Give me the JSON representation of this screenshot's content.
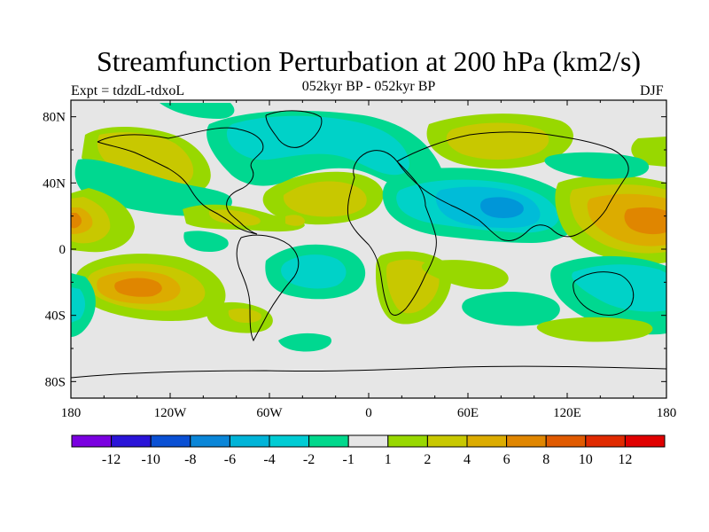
{
  "title": "Streamfunction Perturbation at 200 hPa (km2/s)",
  "left_string": "Expt = tdzdL-tdxoL",
  "center_string": "052kyr BP - 052kyr BP",
  "right_string": "DJF",
  "colors": {
    "background_map": "#e6e6e6",
    "n1": "#00d890",
    "n2": "#00d2c8",
    "n4": "#00bcd8",
    "n6": "#0096d8",
    "p1": "#98d800",
    "p2": "#c8c800",
    "p4": "#dcac00",
    "p6": "#e08600"
  },
  "chart_data": {
    "type": "contour-map",
    "title": "Streamfunction Perturbation at 200 hPa (km2/s)",
    "projection": "cylindrical-equidistant",
    "xlim": [
      -180,
      180
    ],
    "ylim": [
      -90,
      90
    ],
    "x_ticks": [
      {
        "value": -180,
        "label": "180"
      },
      {
        "value": -120,
        "label": "120W"
      },
      {
        "value": -60,
        "label": "60W"
      },
      {
        "value": 0,
        "label": "0"
      },
      {
        "value": 60,
        "label": "60E"
      },
      {
        "value": 120,
        "label": "120E"
      },
      {
        "value": 180,
        "label": "180"
      }
    ],
    "y_ticks": [
      {
        "value": 80,
        "label": "80N"
      },
      {
        "value": 40,
        "label": "40N"
      },
      {
        "value": 0,
        "label": "0"
      },
      {
        "value": -40,
        "label": "40S"
      },
      {
        "value": -80,
        "label": "80S"
      }
    ],
    "contour_levels": [
      -12,
      -10,
      -8,
      -6,
      -4,
      -2,
      -1,
      1,
      2,
      4,
      6,
      8,
      10,
      12
    ],
    "colorbar": {
      "colors": [
        "#7a00e0",
        "#2a14d8",
        "#0a50d4",
        "#0a86d8",
        "#00b4d8",
        "#00ccd4",
        "#00d88c",
        "#e6e6e6",
        "#98d800",
        "#c8c800",
        "#dcac00",
        "#e08600",
        "#e05a00",
        "#e02a00",
        "#e00000"
      ],
      "labels": [
        "-12",
        "-10",
        "-8",
        "-6",
        "-4",
        "-2",
        "-1",
        "1",
        "2",
        "4",
        "6",
        "8",
        "10",
        "12"
      ]
    },
    "features": [
      {
        "name": "N Pacific/Canada positive",
        "level": "p2",
        "center": [
          -120,
          55
        ],
        "extent": [
          55,
          22
        ]
      },
      {
        "name": "Pacific negative band",
        "level": "n1",
        "center": [
          -150,
          42
        ],
        "extent": [
          40,
          18
        ]
      },
      {
        "name": "Hawaii positive",
        "level": "p4",
        "center": [
          -172,
          18
        ],
        "extent": [
          20,
          15
        ]
      },
      {
        "name": "S Pacific positive",
        "level": "p6",
        "center": [
          -140,
          -22
        ],
        "extent": [
          35,
          20
        ]
      },
      {
        "name": "N Atlantic/Europe negative",
        "level": "n2",
        "center": [
          -15,
          65
        ],
        "extent": [
          65,
          18
        ]
      },
      {
        "name": "Central Asia negative",
        "level": "n6",
        "center": [
          88,
          25
        ],
        "extent": [
          65,
          25
        ]
      },
      {
        "name": "NE Asia positive",
        "level": "p2",
        "center": [
          75,
          72
        ],
        "extent": [
          60,
          12
        ]
      },
      {
        "name": "Africa positive",
        "level": "p2",
        "center": [
          20,
          -10
        ],
        "extent": [
          25,
          40
        ]
      },
      {
        "name": "W Pacific positive",
        "level": "p6",
        "center": [
          165,
          20
        ],
        "extent": [
          35,
          25
        ]
      },
      {
        "name": "Australia/SW Pacific negative",
        "level": "n2",
        "center": [
          150,
          -25
        ],
        "extent": [
          45,
          25
        ]
      }
    ]
  }
}
